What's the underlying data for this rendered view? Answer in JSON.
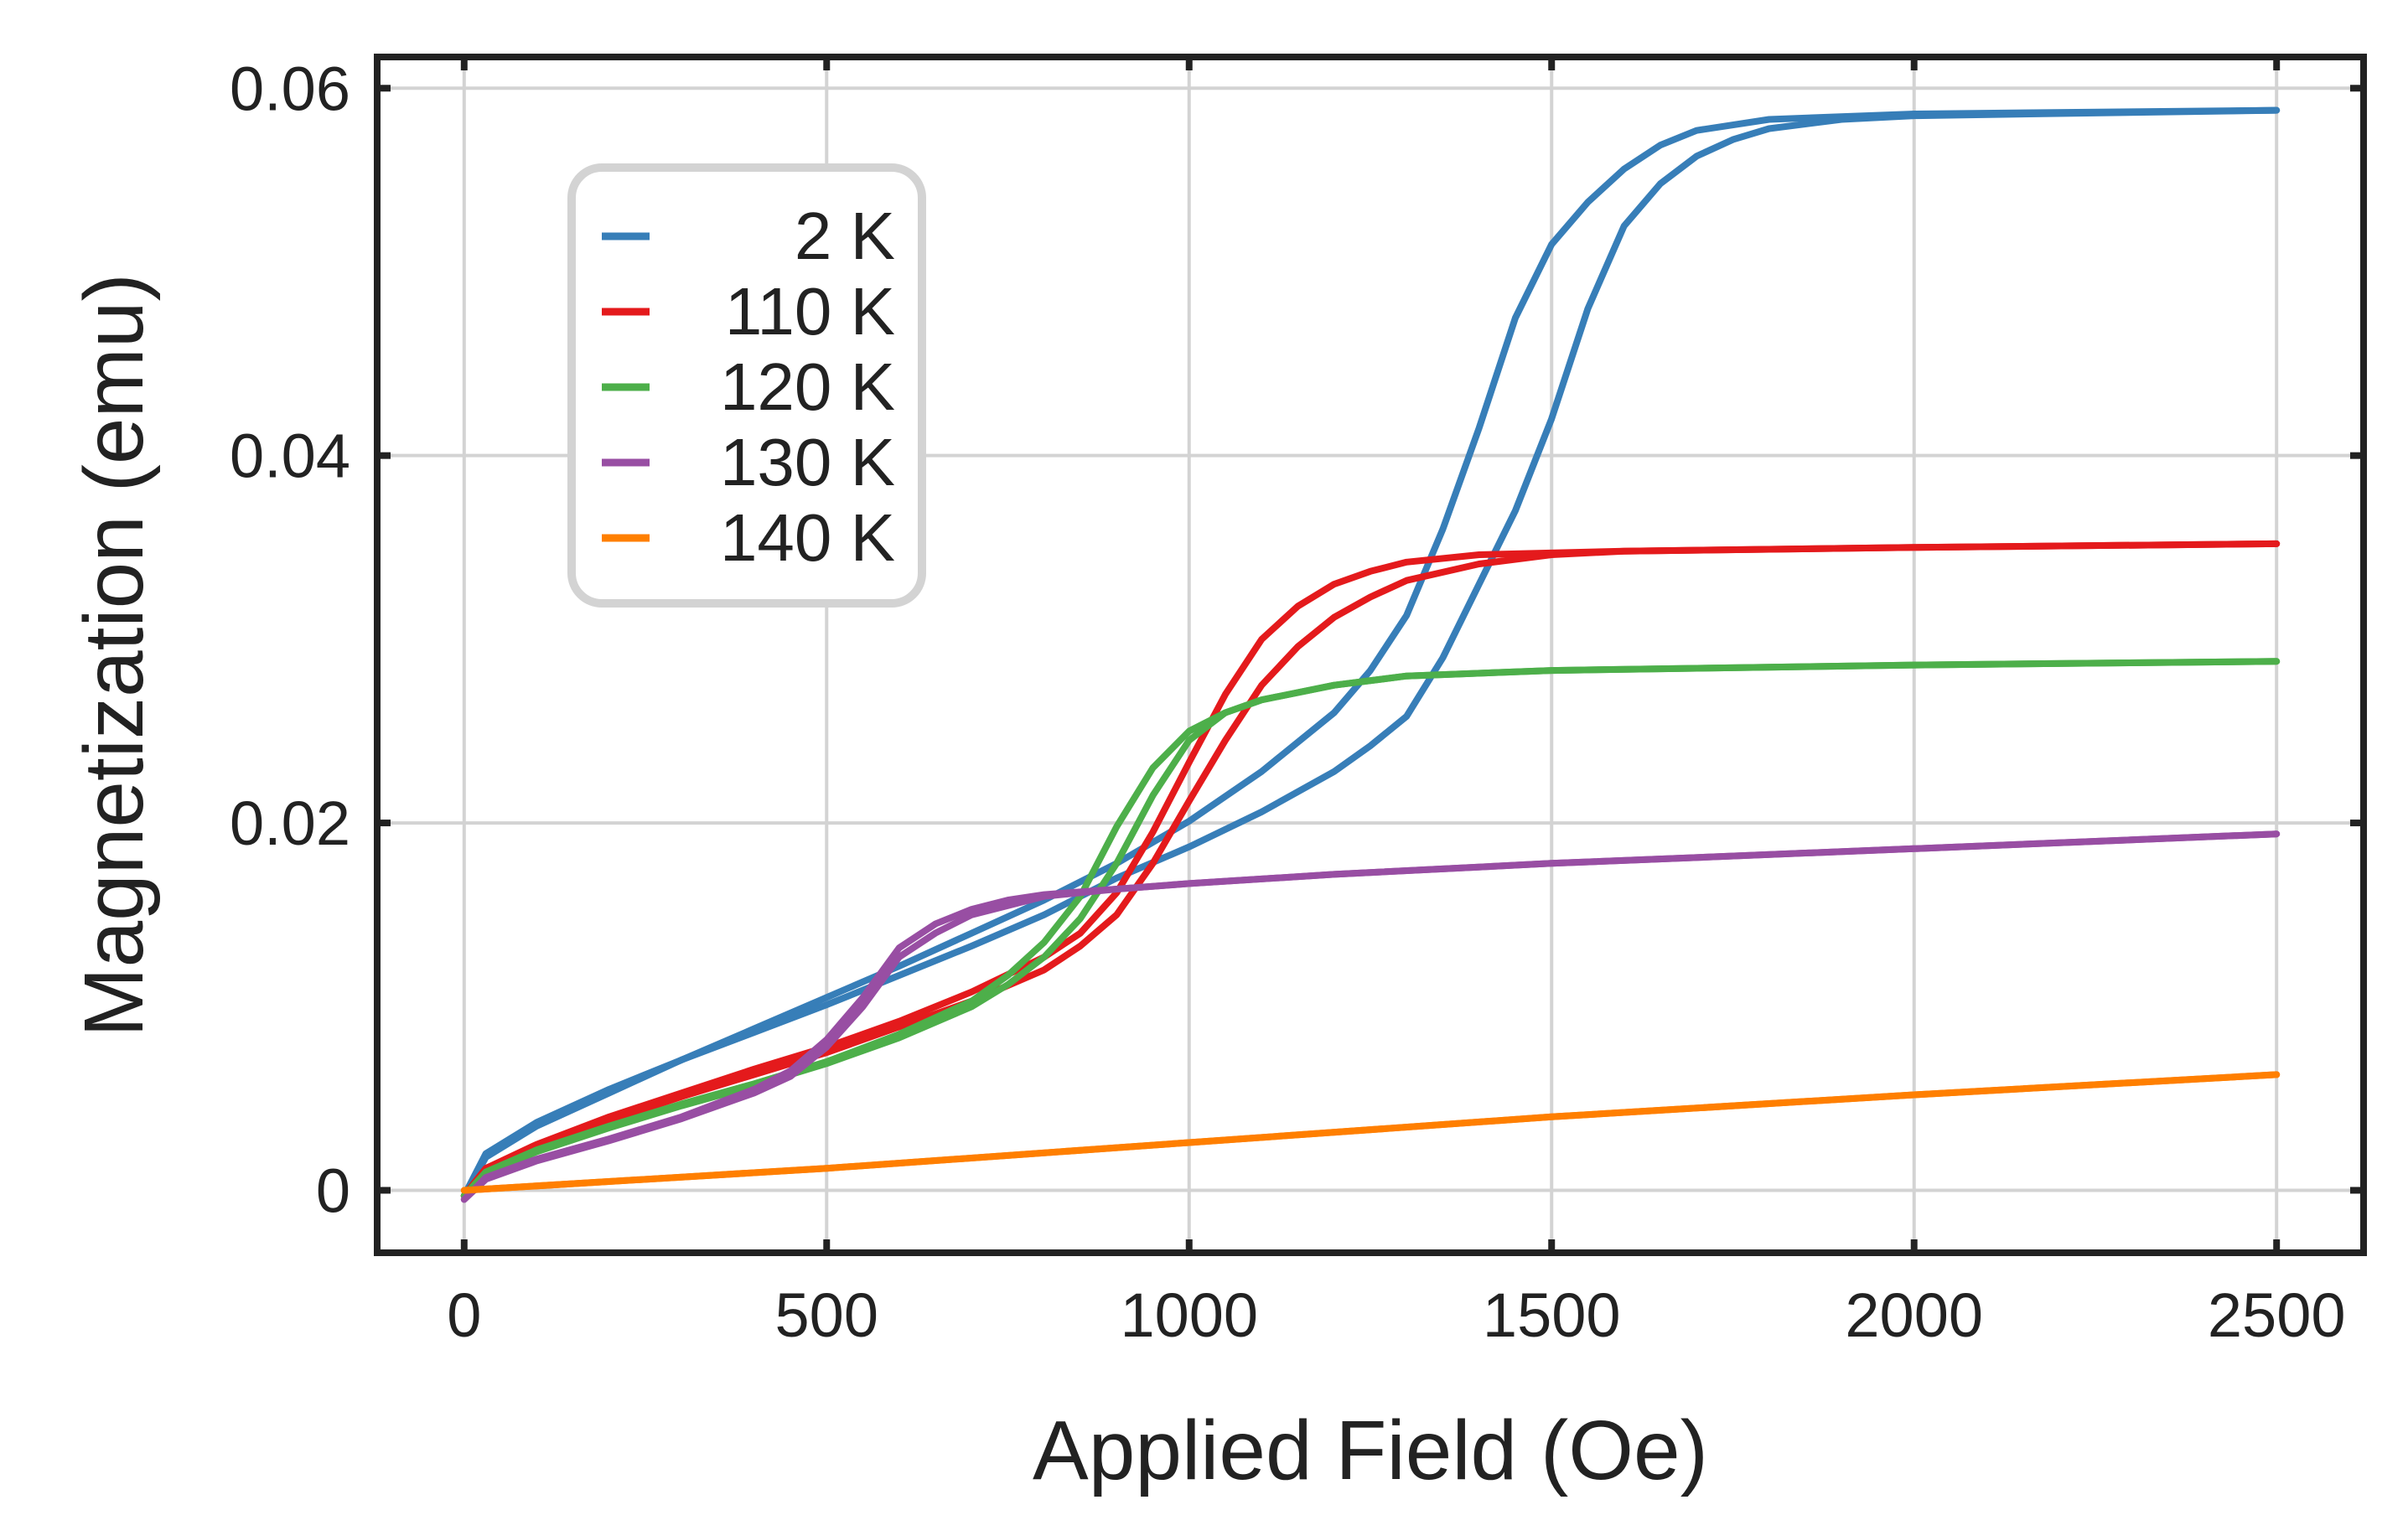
{
  "chart_data": {
    "type": "line",
    "title": "",
    "xlabel": "Applied Field (Oe)",
    "ylabel": "Magnetization (emu)",
    "xlim": [
      -120,
      2620
    ],
    "ylim": [
      -0.0034,
      0.0617
    ],
    "xticks": [
      0,
      500,
      1000,
      1500,
      2000,
      2500
    ],
    "xtick_labels": [
      "0",
      "500",
      "1000",
      "1500",
      "2000",
      "2500"
    ],
    "yticks": [
      0,
      0.02,
      0.04,
      0.06
    ],
    "ytick_labels": [
      "0",
      "0.02",
      "0.04",
      "0.06"
    ],
    "grid": true,
    "legend_position": "upper-left",
    "series": [
      {
        "name": " 2 K",
        "color": "#377eb8",
        "loops": [
          [
            [
              0,
              -0.0003
            ],
            [
              30,
              0.0018
            ],
            [
              100,
              0.0035
            ],
            [
              200,
              0.0053
            ],
            [
              300,
              0.0071
            ],
            [
              400,
              0.0088
            ],
            [
              500,
              0.0105
            ],
            [
              600,
              0.0122
            ],
            [
              700,
              0.014
            ],
            [
              800,
              0.0158
            ],
            [
              900,
              0.0178
            ],
            [
              1000,
              0.0201
            ],
            [
              1100,
              0.0228
            ],
            [
              1200,
              0.026
            ],
            [
              1250,
              0.0283
            ],
            [
              1300,
              0.0313
            ],
            [
              1350,
              0.036
            ],
            [
              1400,
              0.0415
            ],
            [
              1450,
              0.0475
            ],
            [
              1500,
              0.0515
            ],
            [
              1550,
              0.0538
            ],
            [
              1600,
              0.0556
            ],
            [
              1650,
              0.0569
            ],
            [
              1700,
              0.0577
            ],
            [
              1800,
              0.0583
            ],
            [
              2000,
              0.0586
            ],
            [
              2500,
              0.0588
            ]
          ],
          [
            [
              2500,
              0.0588
            ],
            [
              2000,
              0.0585
            ],
            [
              1900,
              0.0583
            ],
            [
              1800,
              0.0578
            ],
            [
              1750,
              0.0572
            ],
            [
              1700,
              0.0563
            ],
            [
              1650,
              0.0548
            ],
            [
              1600,
              0.0525
            ],
            [
              1550,
              0.048
            ],
            [
              1500,
              0.042
            ],
            [
              1450,
              0.037
            ],
            [
              1400,
              0.033
            ],
            [
              1350,
              0.029
            ],
            [
              1300,
              0.0258
            ],
            [
              1250,
              0.0242
            ],
            [
              1200,
              0.0228
            ],
            [
              1100,
              0.0206
            ],
            [
              1000,
              0.0187
            ],
            [
              900,
              0.017
            ],
            [
              800,
              0.015
            ],
            [
              700,
              0.0133
            ],
            [
              600,
              0.0117
            ],
            [
              500,
              0.0101
            ],
            [
              400,
              0.0086
            ],
            [
              300,
              0.0071
            ],
            [
              200,
              0.0055
            ],
            [
              100,
              0.0037
            ],
            [
              30,
              0.002
            ],
            [
              0,
              -0.0003
            ]
          ]
        ]
      },
      {
        "name": "110 K",
        "color": "#e41a1c",
        "loops": [
          [
            [
              0,
              -0.0003
            ],
            [
              30,
              0.0012
            ],
            [
              100,
              0.0025
            ],
            [
              200,
              0.004
            ],
            [
              300,
              0.0053
            ],
            [
              400,
              0.0066
            ],
            [
              500,
              0.0078
            ],
            [
              600,
              0.0092
            ],
            [
              700,
              0.0108
            ],
            [
              800,
              0.0127
            ],
            [
              850,
              0.014
            ],
            [
              900,
              0.0162
            ],
            [
              950,
              0.0195
            ],
            [
              1000,
              0.0233
            ],
            [
              1050,
              0.027
            ],
            [
              1100,
              0.03
            ],
            [
              1150,
              0.0318
            ],
            [
              1200,
              0.033
            ],
            [
              1250,
              0.0337
            ],
            [
              1300,
              0.0342
            ],
            [
              1400,
              0.0346
            ],
            [
              1600,
              0.0348
            ],
            [
              2000,
              0.035
            ],
            [
              2500,
              0.0352
            ]
          ],
          [
            [
              2500,
              0.0352
            ],
            [
              2000,
              0.035
            ],
            [
              1600,
              0.0348
            ],
            [
              1500,
              0.0346
            ],
            [
              1400,
              0.0341
            ],
            [
              1300,
              0.0332
            ],
            [
              1250,
              0.0323
            ],
            [
              1200,
              0.0312
            ],
            [
              1150,
              0.0296
            ],
            [
              1100,
              0.0275
            ],
            [
              1050,
              0.0245
            ],
            [
              1000,
              0.0212
            ],
            [
              950,
              0.0178
            ],
            [
              900,
              0.015
            ],
            [
              850,
              0.0133
            ],
            [
              800,
              0.012
            ],
            [
              700,
              0.0103
            ],
            [
              600,
              0.0089
            ],
            [
              500,
              0.0075
            ],
            [
              400,
              0.0063
            ],
            [
              300,
              0.0051
            ],
            [
              200,
              0.0038
            ],
            [
              100,
              0.0024
            ],
            [
              30,
              0.0012
            ],
            [
              0,
              -0.0003
            ]
          ]
        ]
      },
      {
        "name": "120 K",
        "color": "#4daf4a",
        "loops": [
          [
            [
              0,
              -0.0003
            ],
            [
              30,
              0.001
            ],
            [
              100,
              0.0022
            ],
            [
              200,
              0.0035
            ],
            [
              300,
              0.0047
            ],
            [
              400,
              0.0058
            ],
            [
              500,
              0.007
            ],
            [
              600,
              0.0085
            ],
            [
              700,
              0.0103
            ],
            [
              750,
              0.0117
            ],
            [
              800,
              0.0135
            ],
            [
              850,
              0.016
            ],
            [
              900,
              0.0198
            ],
            [
              950,
              0.023
            ],
            [
              1000,
              0.025
            ],
            [
              1050,
              0.026
            ],
            [
              1100,
              0.0267
            ],
            [
              1200,
              0.0275
            ],
            [
              1300,
              0.028
            ],
            [
              1500,
              0.0283
            ],
            [
              2000,
              0.0286
            ],
            [
              2500,
              0.0288
            ]
          ],
          [
            [
              2500,
              0.0288
            ],
            [
              2000,
              0.0286
            ],
            [
              1500,
              0.0283
            ],
            [
              1300,
              0.028
            ],
            [
              1200,
              0.0275
            ],
            [
              1100,
              0.0267
            ],
            [
              1050,
              0.026
            ],
            [
              1000,
              0.0245
            ],
            [
              950,
              0.0215
            ],
            [
              900,
              0.0178
            ],
            [
              850,
              0.0148
            ],
            [
              800,
              0.0127
            ],
            [
              750,
              0.0112
            ],
            [
              700,
              0.01
            ],
            [
              600,
              0.0083
            ],
            [
              500,
              0.0069
            ],
            [
              400,
              0.0057
            ],
            [
              300,
              0.0046
            ],
            [
              200,
              0.0034
            ],
            [
              100,
              0.0021
            ],
            [
              30,
              0.0009
            ],
            [
              0,
              -0.0003
            ]
          ]
        ]
      },
      {
        "name": "130 K",
        "color": "#984ea3",
        "loops": [
          [
            [
              0,
              -0.0005
            ],
            [
              30,
              0.0007
            ],
            [
              100,
              0.0017
            ],
            [
              200,
              0.0028
            ],
            [
              300,
              0.004
            ],
            [
              400,
              0.0055
            ],
            [
              450,
              0.0065
            ],
            [
              500,
              0.0082
            ],
            [
              550,
              0.0105
            ],
            [
              600,
              0.0132
            ],
            [
              650,
              0.0145
            ],
            [
              700,
              0.0153
            ],
            [
              750,
              0.0158
            ],
            [
              800,
              0.0161
            ],
            [
              900,
              0.0164
            ],
            [
              1000,
              0.0167
            ],
            [
              1200,
              0.0172
            ],
            [
              1500,
              0.0178
            ],
            [
              2000,
              0.0186
            ],
            [
              2500,
              0.0194
            ]
          ],
          [
            [
              2500,
              0.0194
            ],
            [
              2000,
              0.0186
            ],
            [
              1500,
              0.0178
            ],
            [
              1200,
              0.0172
            ],
            [
              1000,
              0.0167
            ],
            [
              900,
              0.0164
            ],
            [
              800,
              0.016
            ],
            [
              750,
              0.0155
            ],
            [
              700,
              0.015
            ],
            [
              650,
              0.014
            ],
            [
              600,
              0.0127
            ],
            [
              550,
              0.01
            ],
            [
              500,
              0.0078
            ],
            [
              450,
              0.0062
            ],
            [
              400,
              0.0053
            ],
            [
              300,
              0.0039
            ],
            [
              200,
              0.0027
            ],
            [
              100,
              0.0016
            ],
            [
              30,
              0.0006
            ],
            [
              0,
              -0.0005
            ]
          ]
        ]
      },
      {
        "name": "140 K",
        "color": "#ff7f00",
        "loops": [
          [
            [
              0,
              0.0
            ],
            [
              500,
              0.0012
            ],
            [
              1000,
              0.0026
            ],
            [
              1500,
              0.004
            ],
            [
              2000,
              0.0052
            ],
            [
              2500,
              0.0063
            ]
          ],
          [
            [
              2500,
              0.0063
            ],
            [
              2000,
              0.0052
            ],
            [
              1500,
              0.004
            ],
            [
              1000,
              0.0026
            ],
            [
              500,
              0.0012
            ],
            [
              0,
              0.0
            ]
          ]
        ]
      }
    ]
  }
}
